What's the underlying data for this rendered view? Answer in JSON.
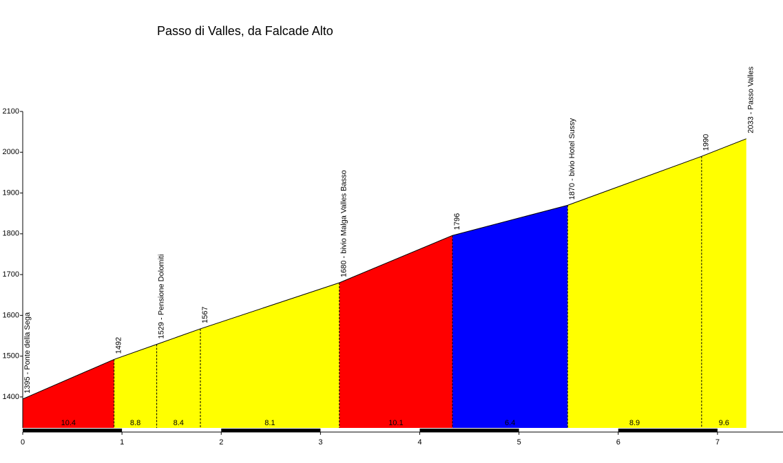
{
  "chart_data": {
    "type": "profile",
    "title": "Passo di Valles, da Falcade Alto",
    "x": [
      0,
      0.92,
      1.35,
      1.79,
      3.19,
      4.33,
      5.49,
      6.84,
      7.29
    ],
    "values": [
      1395,
      1492,
      1529,
      1567,
      1680,
      1796,
      1870,
      1990,
      2033
    ],
    "point_labels": [
      "1395 - Ponte della Sega",
      "1492",
      "1529 - Pensione Dolomiti",
      "1567",
      "1680 - bivio Malga Valles Basso",
      "1796",
      "1870 - bivio Hotel Sussy",
      "1990",
      "2033 - Passo Valles"
    ],
    "segments": {
      "gradients": [
        10.4,
        8.8,
        8.4,
        8.1,
        10.1,
        6.4,
        8.9,
        9.6
      ],
      "colors": [
        "#ff0000",
        "#ffff00",
        "#ffff00",
        "#ffff00",
        "#ff0000",
        "#0000ff",
        "#ffff00",
        "#ffff00"
      ]
    },
    "xlim": [
      0,
      7.66
    ],
    "xticks": [
      0,
      1,
      2,
      3,
      4,
      5,
      6,
      7
    ],
    "ylim": [
      1324,
      2100
    ],
    "yticks": [
      1400,
      1500,
      1600,
      1700,
      1800,
      1900,
      2000,
      2100
    ]
  }
}
